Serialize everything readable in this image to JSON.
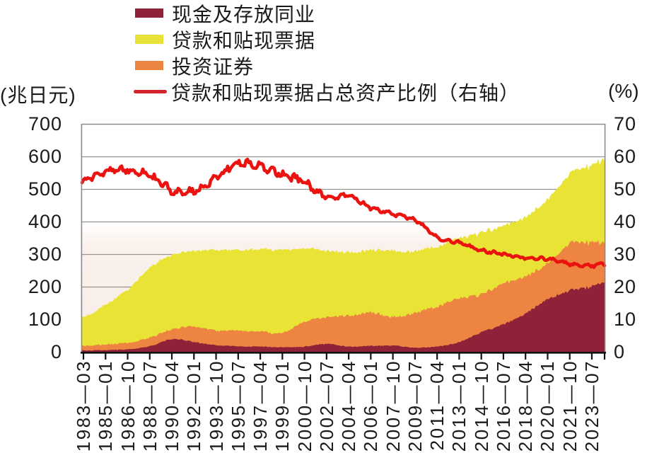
{
  "legend": {
    "items": [
      {
        "label": "现金及存放同业",
        "color": "#8F2238",
        "type": "area"
      },
      {
        "label": "贷款和贴现票据",
        "color": "#E8E138",
        "type": "area"
      },
      {
        "label": "投资证券",
        "color": "#EC8541",
        "type": "area"
      },
      {
        "label": "贷款和贴现票据占总资产比例（右轴）",
        "color": "#D2222A",
        "type": "line"
      }
    ]
  },
  "chart_data": {
    "type": "area+line",
    "subtype": "stacked monthly time series, noisy",
    "left_axis": {
      "unit": "(兆日元)",
      "range": [
        0,
        700
      ],
      "ticks": [
        0,
        100,
        200,
        300,
        400,
        500,
        600,
        700
      ]
    },
    "right_axis": {
      "unit": "(%)",
      "range": [
        0,
        70
      ],
      "ticks": [
        0,
        10,
        20,
        30,
        40,
        50,
        60,
        70
      ]
    },
    "x_tick_labels": [
      "1983—03",
      "1985—01",
      "1986—10",
      "1988—07",
      "1990—04",
      "1992—01",
      "1993—10",
      "1995—07",
      "1997—04",
      "1999—01",
      "2000—10",
      "2002—07",
      "2004—04",
      "2006—01",
      "2007—10",
      "2009—07",
      "2011—04",
      "2013—01",
      "2014—10",
      "2016—07",
      "2018—04",
      "2020—01",
      "2021—10",
      "2023—07"
    ],
    "grid": "horizontal gridlines every 100",
    "legend_position": "top-left",
    "stack_order_bottom_to_top": [
      "现金及存放同业",
      "投资证券",
      "贷款和贴现票据"
    ],
    "series": [
      {
        "name": "现金及存放同业",
        "type": "area",
        "axis": "left",
        "color": "#8F2238",
        "values_at_ticks": [
          4,
          5,
          8,
          17,
          39,
          30,
          20,
          17,
          16,
          14,
          16,
          24,
          16,
          18,
          19,
          13,
          16,
          30,
          60,
          84,
          118,
          160,
          188,
          200
        ],
        "value_at_right_edge": 215
      },
      {
        "name": "投资证券",
        "type": "area",
        "axis": "left",
        "color": "#ED8442",
        "values_at_ticks": [
          14,
          17,
          20,
          26,
          30,
          47,
          44,
          48,
          46,
          44,
          76,
          81,
          95,
          102,
          88,
          107,
          123,
          134,
          116,
          125,
          113,
          110,
          142,
          135
        ],
        "value_at_right_edge": 120
      },
      {
        "name": "贷款和贴现票据",
        "type": "area",
        "axis": "left",
        "color": "#E9E335",
        "values_at_ticks": [
          89,
          122,
          163,
          214,
          229,
          232,
          248,
          247,
          253,
          254,
          226,
          204,
          195,
          192,
          203,
          189,
          185,
          185,
          190,
          177,
          183,
          196,
          215,
          236
        ],
        "value_at_right_edge": 255
      },
      {
        "name": "贷款和贴现票据占总资产比例（右轴）",
        "type": "line",
        "axis": "right",
        "color": "#EA1310",
        "values_at_ticks": [
          52.3,
          55.5,
          55.8,
          54.1,
          49.6,
          49.3,
          53.5,
          57.8,
          57.0,
          54.4,
          52.2,
          47.4,
          47.9,
          44.3,
          42.3,
          40.6,
          35.2,
          33.5,
          31.2,
          30.0,
          28.9,
          28.5,
          27.0,
          26.4
        ],
        "value_at_right_edge": 27.0
      }
    ],
    "plot_background": {
      "top_color": "#FFFFFF",
      "bottom_color": "#F8EDE7"
    }
  }
}
